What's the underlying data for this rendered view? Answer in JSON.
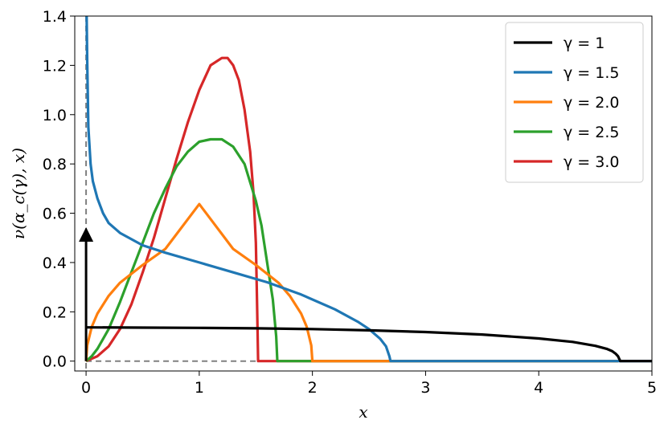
{
  "chart_data": {
    "type": "line",
    "xlabel": "x",
    "ylabel": "ν(α_c(γ), x)",
    "xlim": [
      -0.1,
      5
    ],
    "ylim": [
      -0.04,
      1.4
    ],
    "xticks": [
      0,
      1,
      2,
      3,
      4,
      5
    ],
    "xtick_labels": [
      "0",
      "1",
      "2",
      "3",
      "4",
      "5"
    ],
    "yticks": [
      0.0,
      0.2,
      0.4,
      0.6,
      0.8,
      1.0,
      1.2,
      1.4
    ],
    "ytick_labels": [
      "0.0",
      "0.2",
      "0.4",
      "0.6",
      "0.8",
      "1.0",
      "1.2",
      "1.4"
    ],
    "grid": false,
    "legend_position": "top-right",
    "series": [
      {
        "name": "γ = 1",
        "color": "#000000",
        "x": [
          0,
          0.5,
          1.0,
          1.5,
          2.0,
          2.5,
          3.0,
          3.5,
          4.0,
          4.3,
          4.5,
          4.6,
          4.65,
          4.68,
          4.7,
          4.72,
          5.0
        ],
        "y": [
          0.137,
          0.136,
          0.135,
          0.133,
          0.13,
          0.125,
          0.118,
          0.108,
          0.092,
          0.078,
          0.062,
          0.05,
          0.04,
          0.03,
          0.02,
          0.0,
          0.0
        ],
        "delta_at": 0,
        "delta_marker_height": 0.53
      },
      {
        "name": "γ = 1.5",
        "color": "#1f77b4",
        "x": [
          0.005,
          0.01,
          0.02,
          0.04,
          0.06,
          0.1,
          0.15,
          0.2,
          0.3,
          0.5,
          0.7,
          1.0,
          1.3,
          1.6,
          1.9,
          2.2,
          2.4,
          2.5,
          2.6,
          2.65,
          2.68,
          2.69,
          3.0,
          5.0
        ],
        "y": [
          1.4,
          1.22,
          0.95,
          0.8,
          0.73,
          0.66,
          0.6,
          0.56,
          0.52,
          0.47,
          0.44,
          0.4,
          0.36,
          0.32,
          0.27,
          0.21,
          0.16,
          0.13,
          0.09,
          0.06,
          0.02,
          0.0,
          0.0,
          0.0
        ]
      },
      {
        "name": "γ = 2.0",
        "color": "#ff7f0e",
        "x": [
          0,
          0.01,
          0.05,
          0.1,
          0.2,
          0.3,
          0.5,
          0.7,
          1.0,
          1.3,
          1.5,
          1.7,
          1.8,
          1.9,
          1.95,
          1.99,
          2.0,
          2.5,
          4.7
        ],
        "y": [
          0,
          0.064,
          0.139,
          0.193,
          0.265,
          0.318,
          0.39,
          0.455,
          0.637,
          0.455,
          0.39,
          0.318,
          0.265,
          0.193,
          0.139,
          0.064,
          0.0,
          0.0,
          0.0
        ]
      },
      {
        "name": "γ = 2.5",
        "color": "#2ca02c",
        "x": [
          0,
          0.05,
          0.1,
          0.2,
          0.3,
          0.4,
          0.5,
          0.6,
          0.7,
          0.8,
          0.9,
          1.0,
          1.1,
          1.2,
          1.3,
          1.4,
          1.5,
          1.55,
          1.6,
          1.65,
          1.68,
          1.69,
          2.0,
          4.7
        ],
        "y": [
          0,
          0.02,
          0.05,
          0.13,
          0.24,
          0.36,
          0.48,
          0.6,
          0.7,
          0.79,
          0.85,
          0.89,
          0.9,
          0.9,
          0.87,
          0.8,
          0.65,
          0.55,
          0.4,
          0.25,
          0.1,
          0.0,
          0.0,
          0.0
        ]
      },
      {
        "name": "γ = 3.0",
        "color": "#d62728",
        "x": [
          0,
          0.1,
          0.2,
          0.3,
          0.4,
          0.5,
          0.6,
          0.7,
          0.8,
          0.9,
          1.0,
          1.1,
          1.2,
          1.25,
          1.3,
          1.35,
          1.4,
          1.45,
          1.48,
          1.5,
          1.51,
          1.52,
          2.0,
          4.7
        ],
        "y": [
          0,
          0.02,
          0.06,
          0.13,
          0.23,
          0.36,
          0.5,
          0.66,
          0.82,
          0.97,
          1.1,
          1.2,
          1.23,
          1.23,
          1.2,
          1.14,
          1.02,
          0.85,
          0.68,
          0.48,
          0.25,
          0.0,
          0.0,
          0.0
        ]
      }
    ],
    "reference_lines": [
      {
        "type": "vertical",
        "x": 0,
        "style": "dashed",
        "color": "#808080"
      },
      {
        "type": "horizontal",
        "y": 0,
        "x_range": [
          0,
          1.55
        ],
        "style": "dashed",
        "color": "#808080"
      }
    ]
  }
}
